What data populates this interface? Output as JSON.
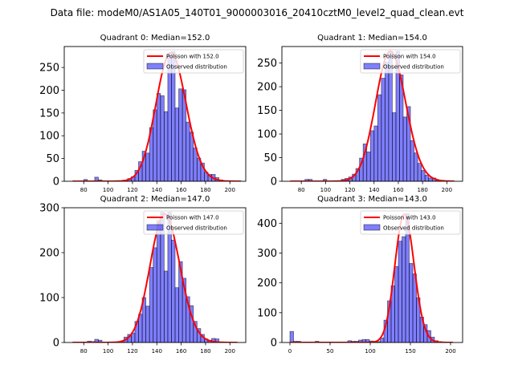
{
  "suptitle": "Data file: modeM0/AS1A05_140T01_9000003016_20410cztM0_level2_quad_clean.evt",
  "chart_data": [
    {
      "type": "bar",
      "title": "Quadrant 0: Median=152.0",
      "xlabel": "",
      "ylabel": "",
      "xlim": [
        64,
        213
      ],
      "ylim": [
        0,
        296
      ],
      "xticks": [
        80,
        100,
        120,
        140,
        160,
        180,
        200
      ],
      "yticks": [
        0,
        50,
        100,
        150,
        200,
        250
      ],
      "bin_width": 3,
      "bins_start": [
        71,
        74,
        77,
        80,
        83,
        86,
        89,
        92,
        95,
        98,
        101,
        104,
        107,
        110,
        113,
        116,
        119,
        122,
        125,
        128,
        131,
        134,
        137,
        140,
        143,
        146,
        149,
        152,
        155,
        158,
        161,
        164,
        167,
        170,
        173,
        176,
        179,
        182,
        185,
        188,
        191,
        194,
        197,
        200,
        203,
        206
      ],
      "counts": [
        1,
        1,
        1,
        4,
        1,
        1,
        9,
        3,
        1,
        1,
        1,
        1,
        1,
        1,
        2,
        6,
        10,
        24,
        43,
        66,
        62,
        118,
        157,
        193,
        188,
        153,
        275,
        285,
        161,
        203,
        201,
        130,
        108,
        73,
        51,
        40,
        20,
        15,
        15,
        8,
        3,
        1,
        1,
        1,
        1,
        1
      ],
      "poisson_mean": 152.0,
      "poisson_peak": 282,
      "legend": [
        "Poisson with 152.0",
        "Observed distribution"
      ],
      "legend_loc": "upper right"
    },
    {
      "type": "bar",
      "title": "Quadrant 1: Median=154.0",
      "xlabel": "",
      "ylabel": "",
      "xlim": [
        64,
        213
      ],
      "ylim": [
        0,
        285
      ],
      "xticks": [
        80,
        100,
        120,
        140,
        160,
        180,
        200
      ],
      "yticks": [
        0,
        50,
        100,
        150,
        200,
        250
      ],
      "bin_width": 3,
      "bins_start": [
        71,
        74,
        77,
        80,
        83,
        86,
        89,
        92,
        95,
        98,
        101,
        104,
        107,
        110,
        113,
        116,
        119,
        122,
        125,
        128,
        131,
        134,
        137,
        140,
        143,
        146,
        149,
        152,
        155,
        158,
        161,
        164,
        167,
        170,
        173,
        176,
        179,
        182,
        185,
        188,
        191,
        194,
        197,
        200,
        203
      ],
      "counts": [
        1,
        1,
        1,
        1,
        4,
        4,
        1,
        1,
        1,
        4,
        1,
        1,
        1,
        1,
        4,
        6,
        9,
        15,
        27,
        49,
        79,
        62,
        107,
        117,
        183,
        218,
        252,
        275,
        145,
        275,
        225,
        136,
        158,
        86,
        60,
        38,
        23,
        13,
        7,
        7,
        1,
        1,
        1,
        1,
        1
      ],
      "poisson_mean": 154.0,
      "poisson_peak": 275,
      "legend": [
        "Poisson with 154.0",
        "Observed distribution"
      ],
      "legend_loc": "upper right"
    },
    {
      "type": "bar",
      "title": "Quadrant 2: Median=147.0",
      "xlabel": "",
      "ylabel": "",
      "xlim": [
        64,
        213
      ],
      "ylim": [
        0,
        300
      ],
      "xticks": [
        80,
        100,
        120,
        140,
        160,
        180,
        200
      ],
      "yticks": [
        0,
        100,
        200,
        300
      ],
      "bin_width": 3,
      "bins_start": [
        71,
        74,
        77,
        80,
        83,
        86,
        89,
        92,
        95,
        98,
        101,
        104,
        107,
        110,
        113,
        116,
        119,
        122,
        125,
        128,
        131,
        134,
        137,
        140,
        143,
        146,
        149,
        152,
        155,
        158,
        161,
        164,
        167,
        170,
        173,
        176,
        179,
        182,
        185,
        188,
        191,
        194,
        197,
        200,
        203
      ],
      "counts": [
        1,
        1,
        1,
        1,
        3,
        2,
        7,
        5,
        1,
        1,
        1,
        1,
        1,
        1,
        12,
        18,
        21,
        47,
        63,
        100,
        81,
        167,
        211,
        271,
        290,
        159,
        290,
        228,
        122,
        180,
        143,
        102,
        82,
        47,
        31,
        18,
        8,
        5,
        9,
        8,
        1,
        1,
        1,
        1,
        1
      ],
      "poisson_mean": 147.0,
      "poisson_peak": 286,
      "legend": [
        "Poisson with 147.0",
        "Observed distribution"
      ],
      "legend_loc": "upper right"
    },
    {
      "type": "bar",
      "title": "Quadrant 3: Median=143.0",
      "xlabel": "",
      "ylabel": "",
      "xlim": [
        -10,
        215
      ],
      "ylim": [
        0,
        452
      ],
      "xticks": [
        0,
        50,
        100,
        150,
        200
      ],
      "yticks": [
        0,
        100,
        200,
        300,
        400
      ],
      "bin_width": 4.5,
      "bins_start": [
        0,
        4.5,
        9,
        13.5,
        18,
        22.5,
        27,
        31.5,
        36,
        40.5,
        45,
        49.5,
        54,
        58.5,
        63,
        67.5,
        72,
        76.5,
        81,
        85.5,
        90,
        94.5,
        99,
        103.5,
        108,
        112.5,
        117,
        121.5,
        126,
        130.5,
        135,
        139.5,
        144,
        148.5,
        153,
        157.5,
        162,
        166.5,
        171,
        175.5,
        180,
        184.5,
        189,
        193.5,
        198
      ],
      "counts": [
        37,
        4,
        4,
        1,
        1,
        1,
        1,
        4,
        1,
        1,
        1,
        1,
        1,
        1,
        1,
        1,
        6,
        4,
        4,
        8,
        10,
        10,
        5,
        4,
        3,
        15,
        75,
        140,
        190,
        255,
        340,
        355,
        432,
        265,
        230,
        150,
        85,
        60,
        40,
        18,
        6,
        3,
        1,
        1,
        1
      ],
      "poisson_mean": 143.0,
      "poisson_peak": 430,
      "legend": [
        "Poisson with 143.0",
        "Observed distribution"
      ],
      "legend_loc": "upper right"
    }
  ]
}
